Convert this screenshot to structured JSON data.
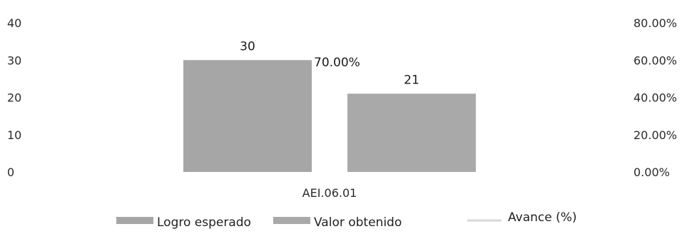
{
  "chart_data": {
    "type": "bar",
    "categories": [
      "AEI.06.01"
    ],
    "series": [
      {
        "name": "Logro esperado",
        "values": [
          30
        ],
        "color": "#a6a6a6",
        "axis": "left"
      },
      {
        "name": "Valor obtenido",
        "values": [
          21
        ],
        "color": "#a9a9a9",
        "axis": "left"
      },
      {
        "name": "Avance (%)",
        "values": [
          0.7
        ],
        "color": "#d9d9d9",
        "axis": "right",
        "kind": "line"
      }
    ],
    "data_labels": [
      "30",
      "21",
      "70.00%"
    ],
    "y_left": {
      "ylim": [
        0,
        40
      ],
      "ticks": [
        "0",
        "10",
        "20",
        "30",
        "40"
      ]
    },
    "y_right": {
      "ylim": [
        0,
        0.8
      ],
      "ticks": [
        "0.00%",
        "20.00%",
        "40.00%",
        "60.00%",
        "80.00%"
      ]
    },
    "grid": false,
    "legend_position": "bottom",
    "title": "",
    "xlabel": "",
    "ylabel": ""
  }
}
